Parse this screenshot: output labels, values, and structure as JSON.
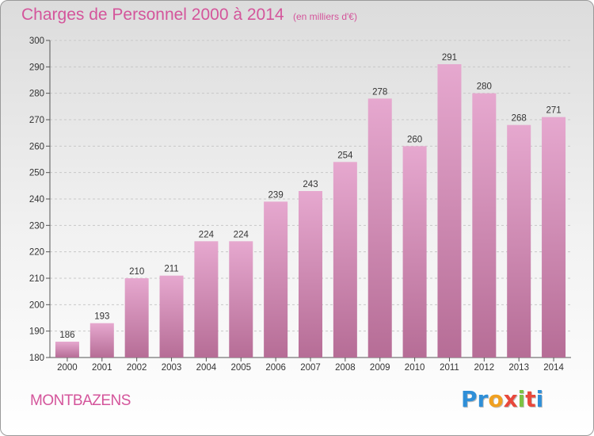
{
  "title": "Charges de Personnel 2000 à 2014",
  "subtitle": "(en milliers d'€)",
  "commune": "MONTBAZENS",
  "logo": {
    "letters": [
      "P",
      "r",
      "o",
      "x",
      "i",
      "t",
      "i"
    ],
    "colors": [
      "#2f8fd8",
      "#2f8fd8",
      "#f0a020",
      "#e8483c",
      "#7cc242",
      "#e8483c",
      "#2f8fd8"
    ]
  },
  "colors": {
    "bar_top": "#e6a8cf",
    "bar_bottom": "#b66d96",
    "accent": "#d4559b"
  },
  "chart_data": {
    "type": "bar",
    "title": "Charges de Personnel 2000 à 2014",
    "subtitle": "(en milliers d'€)",
    "categories": [
      "2000",
      "2001",
      "2002",
      "2003",
      "2004",
      "2005",
      "2006",
      "2007",
      "2008",
      "2009",
      "2010",
      "2011",
      "2012",
      "2013",
      "2014"
    ],
    "values": [
      186,
      193,
      210,
      211,
      224,
      224,
      239,
      243,
      254,
      278,
      260,
      291,
      280,
      268,
      271
    ],
    "ylim": [
      180,
      300
    ],
    "yticks": [
      180,
      190,
      200,
      210,
      220,
      230,
      240,
      250,
      260,
      270,
      280,
      290,
      300
    ],
    "grid": true,
    "legend": "none"
  }
}
